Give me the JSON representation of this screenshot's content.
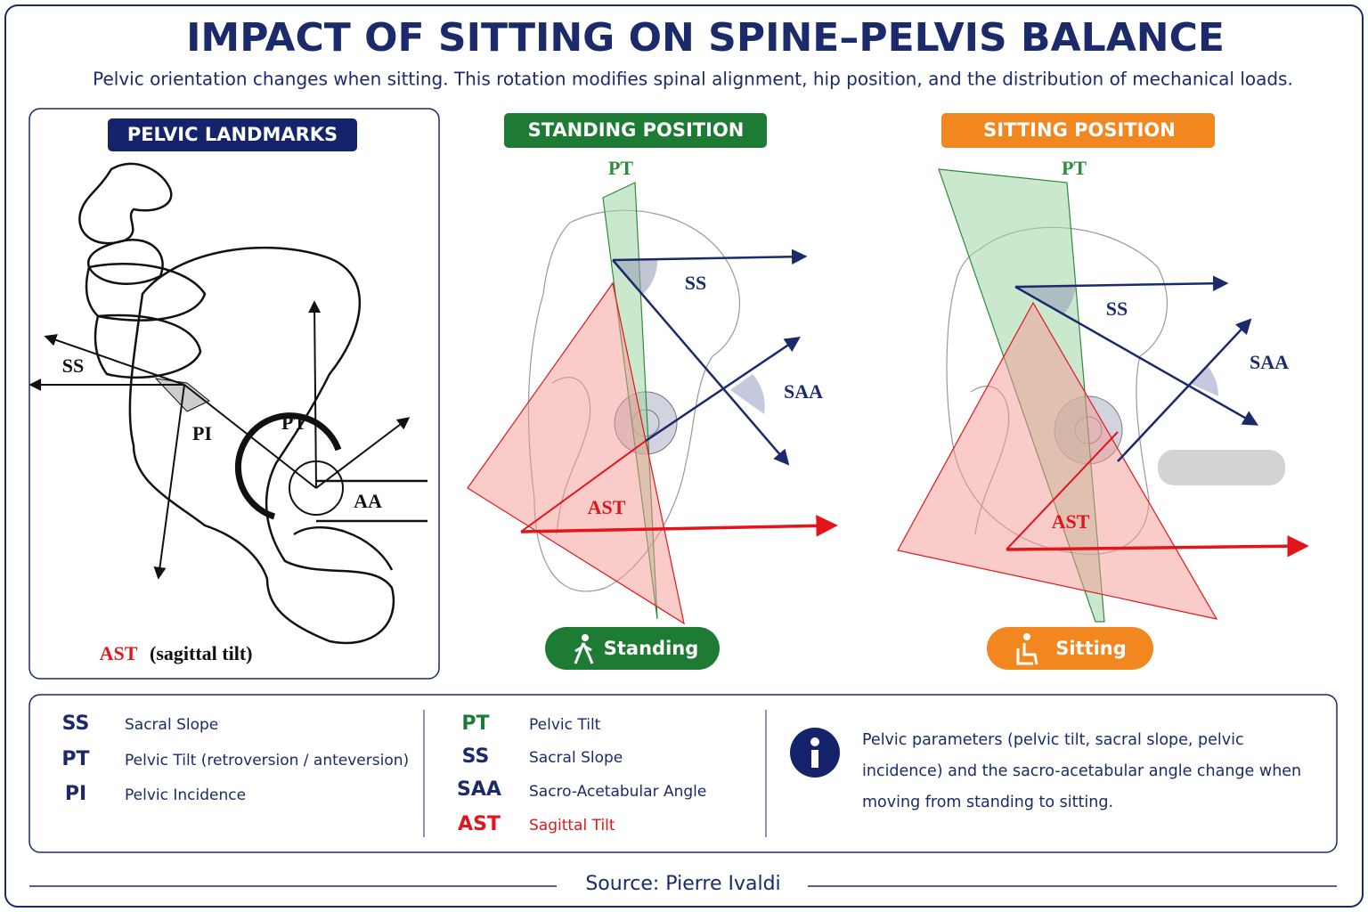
{
  "header": {
    "title": "IMPACT OF SITTING ON SPINE–PELVIS BALANCE",
    "subtitle": "Pelvic orientation changes when sitting. This rotation modifies spinal alignment, hip position, and the distribution of mechanical loads."
  },
  "landmarks": {
    "heading": "PELVIC LANDMARKS",
    "labels": [
      "SS",
      "PI",
      "PT",
      "AA"
    ],
    "caption_abbr": "AST",
    "caption_text": "(sagittal tilt)"
  },
  "standing": {
    "heading": "STANDING POSITION",
    "labels": [
      "PT",
      "SS",
      "SAA",
      "AST"
    ],
    "badge": "Standing"
  },
  "sitting": {
    "heading": "SITTING POSITION",
    "labels": [
      "PT",
      "SS",
      "SAA",
      "AST"
    ],
    "badge": "Sitting"
  },
  "legend": {
    "left": [
      {
        "abbr": "SS",
        "text": "Sacral Slope"
      },
      {
        "abbr": "PT",
        "text": "Pelvic Tilt (retroversion / anteversion)"
      },
      {
        "abbr": "PI",
        "text": "Pelvic Incidence"
      }
    ],
    "middle": [
      {
        "abbr": "PT",
        "text": "Pelvic Tilt"
      },
      {
        "abbr": "SS",
        "text": "Sacral Slope"
      },
      {
        "abbr": "SAA",
        "text": "Sacro-Acetabular Angle"
      },
      {
        "abbr": "AST",
        "text": "Sagittal Tilt"
      }
    ],
    "info": "Pelvic parameters (pelvic tilt, sacral slope, pelvic incidence) and the sacro-acetabular angle change when moving from standing to sitting."
  },
  "footer": {
    "source": "Source: Pierre Ivaldi"
  }
}
